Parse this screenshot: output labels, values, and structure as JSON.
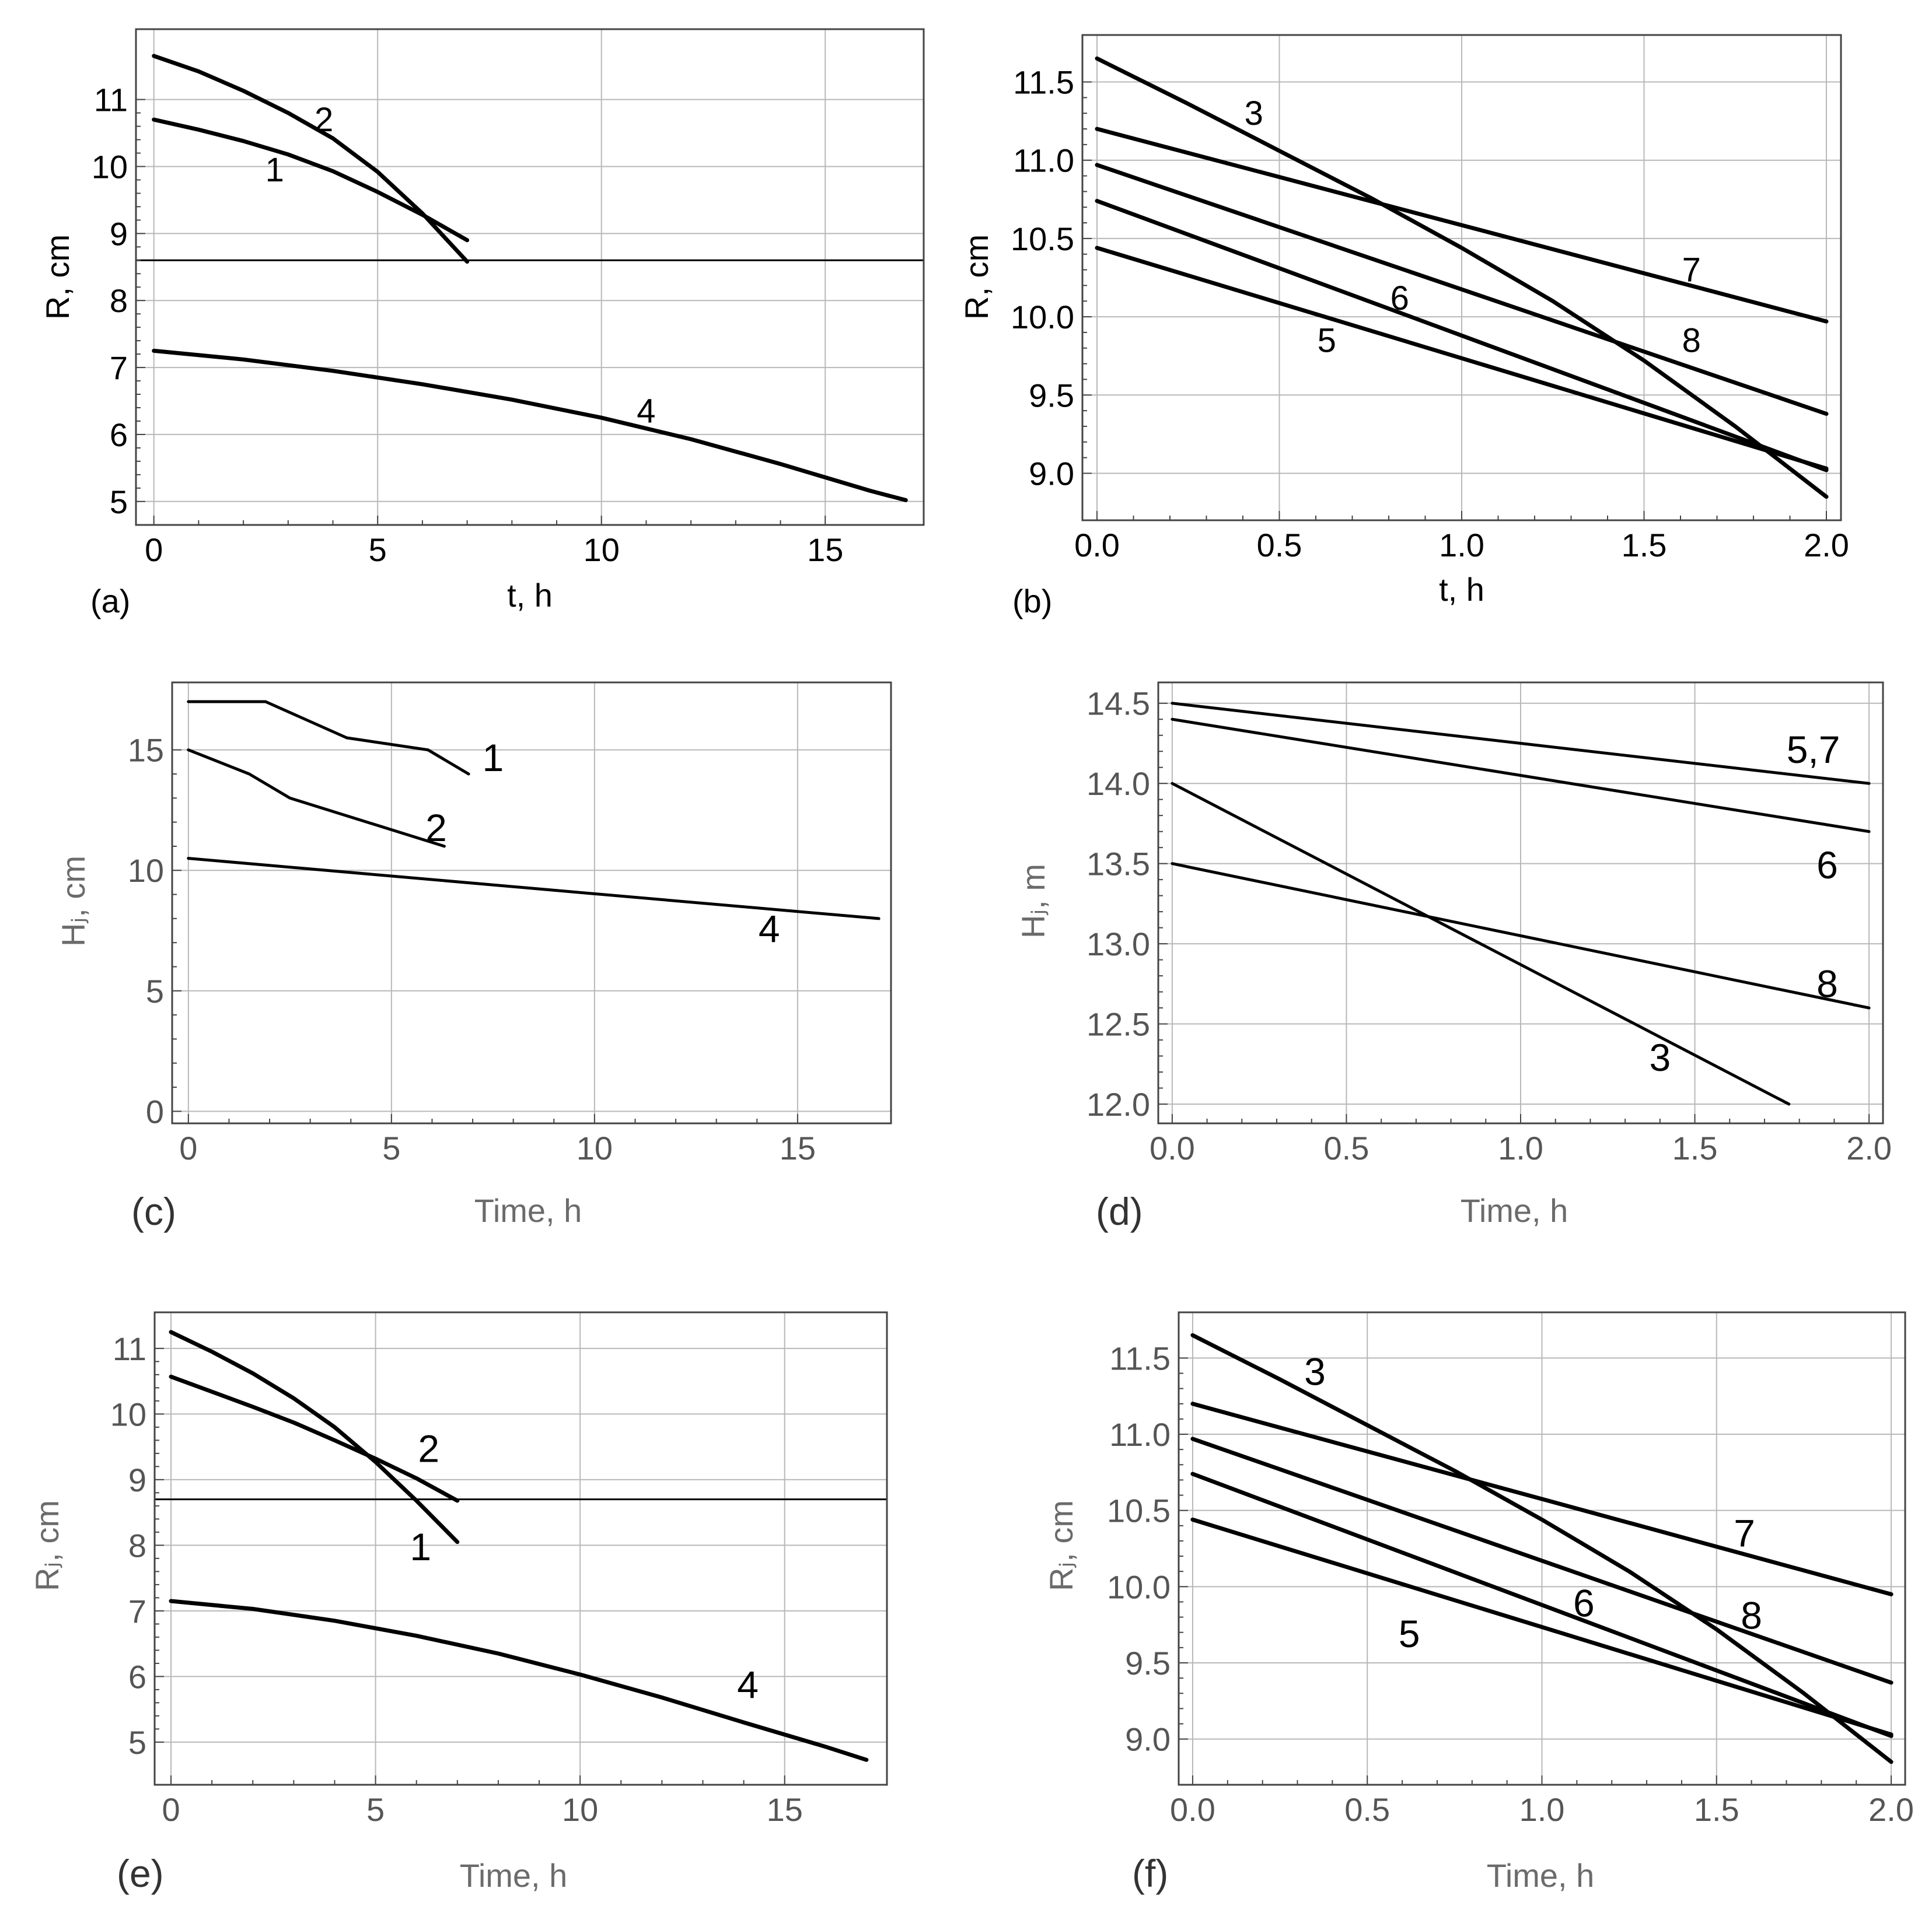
{
  "chart_data": [
    {
      "panel": "(a)",
      "type": "line",
      "xlabel": "t, h",
      "ylabel": "R, cm",
      "xlim": [
        -0.4,
        17.2
      ],
      "ylim": [
        4.65,
        12.05
      ],
      "xticks": [
        0,
        5,
        10,
        15
      ],
      "yticks": [
        5,
        6,
        7,
        8,
        9,
        10,
        11
      ],
      "xtick_labels": [
        "0",
        "5",
        "10",
        "15"
      ],
      "ytick_labels": [
        "5",
        "6",
        "7",
        "8",
        "9",
        "10",
        "11"
      ],
      "grid": true,
      "reference_line_y": 8.6,
      "series": [
        {
          "name": "1",
          "x": [
            0,
            1,
            2,
            3,
            4,
            5,
            6,
            7
          ],
          "y": [
            10.7,
            10.55,
            10.38,
            10.18,
            9.93,
            9.62,
            9.28,
            8.9
          ]
        },
        {
          "name": "2",
          "x": [
            0,
            1,
            2,
            3,
            4,
            5,
            6,
            7
          ],
          "y": [
            11.65,
            11.42,
            11.13,
            10.8,
            10.42,
            9.92,
            9.3,
            8.58
          ]
        },
        {
          "name": "4",
          "x": [
            0,
            2,
            4,
            6,
            8,
            10,
            12,
            14,
            16,
            16.8
          ],
          "y": [
            7.25,
            7.12,
            6.95,
            6.75,
            6.52,
            6.25,
            5.93,
            5.56,
            5.16,
            5.02
          ]
        }
      ],
      "labels": [
        {
          "text": "1",
          "x": 2.7,
          "y": 9.95
        },
        {
          "text": "2",
          "x": 3.8,
          "y": 10.7
        },
        {
          "text": "4",
          "x": 11,
          "y": 6.35
        }
      ]
    },
    {
      "panel": "(b)",
      "type": "line",
      "xlabel": "t, h",
      "ylabel": "R, cm",
      "xlim": [
        -0.04,
        2.04
      ],
      "ylim": [
        8.7,
        11.8
      ],
      "xticks": [
        0.0,
        0.5,
        1.0,
        1.5,
        2.0
      ],
      "yticks": [
        9.0,
        9.5,
        10.0,
        10.5,
        11.0,
        11.5
      ],
      "xtick_labels": [
        "0.0",
        "0.5",
        "1.0",
        "1.5",
        "2.0"
      ],
      "ytick_labels": [
        "9.0",
        "9.5",
        "10.0",
        "10.5",
        "11.0",
        "11.5"
      ],
      "grid": true,
      "series": [
        {
          "name": "3",
          "x": [
            0,
            0.25,
            0.5,
            0.75,
            1,
            1.25,
            1.5,
            1.75,
            2
          ],
          "y": [
            11.65,
            11.36,
            11.06,
            10.76,
            10.44,
            10.1,
            9.72,
            9.3,
            8.85
          ]
        },
        {
          "name": "5",
          "x": [
            0,
            2
          ],
          "y": [
            10.44,
            9.03
          ]
        },
        {
          "name": "6",
          "x": [
            0,
            2
          ],
          "y": [
            10.74,
            9.02
          ]
        },
        {
          "name": "7",
          "x": [
            0,
            2
          ],
          "y": [
            11.2,
            9.97
          ]
        },
        {
          "name": "8",
          "x": [
            0,
            2
          ],
          "y": [
            10.97,
            9.38
          ]
        }
      ],
      "labels": [
        {
          "text": "3",
          "x": 0.43,
          "y": 11.3
        },
        {
          "text": "5",
          "x": 0.63,
          "y": 9.85
        },
        {
          "text": "6",
          "x": 0.83,
          "y": 10.12
        },
        {
          "text": "7",
          "x": 1.63,
          "y": 10.3
        },
        {
          "text": "8",
          "x": 1.63,
          "y": 9.85
        }
      ]
    },
    {
      "panel": "(c)",
      "type": "line",
      "xlabel": "Time, h",
      "ylabel": "Hⱼ, cm",
      "xlim": [
        -0.4,
        17.3
      ],
      "ylim": [
        -0.5,
        17.8
      ],
      "xticks": [
        0,
        5,
        10,
        15
      ],
      "yticks": [
        0,
        5,
        10,
        15
      ],
      "xtick_labels": [
        "0",
        "5",
        "10",
        "15"
      ],
      "ytick_labels": [
        "0",
        "5",
        "10",
        "15"
      ],
      "grid": true,
      "series": [
        {
          "name": "1",
          "x": [
            0,
            1.9,
            3.9,
            5.9,
            6.9
          ],
          "y": [
            17,
            17,
            15.5,
            15,
            14
          ]
        },
        {
          "name": "2",
          "x": [
            0,
            1.5,
            2.5,
            6.3
          ],
          "y": [
            15,
            14,
            13,
            11
          ]
        },
        {
          "name": "4",
          "x": [
            0,
            17
          ],
          "y": [
            10.5,
            8
          ]
        }
      ],
      "labels": [
        {
          "text": "1",
          "x": 7.5,
          "y": 14.6
        },
        {
          "text": "2",
          "x": 6.1,
          "y": 11.7
        },
        {
          "text": "4",
          "x": 14.3,
          "y": 7.5
        }
      ]
    },
    {
      "panel": "(d)",
      "type": "line",
      "xlabel": "Time, h",
      "ylabel": "Hⱼ, m",
      "xlim": [
        -0.04,
        2.04
      ],
      "ylim": [
        11.88,
        14.63
      ],
      "xticks": [
        0.0,
        0.5,
        1.0,
        1.5,
        2.0
      ],
      "yticks": [
        12.0,
        12.5,
        13.0,
        13.5,
        14.0,
        14.5
      ],
      "xtick_labels": [
        "0.0",
        "0.5",
        "1.0",
        "1.5",
        "2.0"
      ],
      "ytick_labels": [
        "12.0",
        "12.5",
        "13.0",
        "13.5",
        "14.0",
        "14.5"
      ],
      "grid": true,
      "series": [
        {
          "name": "5,7",
          "x": [
            0,
            2
          ],
          "y": [
            14.5,
            14.0
          ]
        },
        {
          "name": "6",
          "x": [
            0,
            2
          ],
          "y": [
            14.4,
            13.7
          ]
        },
        {
          "name": "3",
          "x": [
            0,
            1.77
          ],
          "y": [
            14.0,
            12.0
          ]
        },
        {
          "name": "8",
          "x": [
            0,
            2
          ],
          "y": [
            13.5,
            12.6
          ]
        }
      ],
      "labels": [
        {
          "text": "5,7",
          "x": 1.84,
          "y": 14.2
        },
        {
          "text": "6",
          "x": 1.88,
          "y": 13.48
        },
        {
          "text": "8",
          "x": 1.88,
          "y": 12.74
        },
        {
          "text": "3",
          "x": 1.4,
          "y": 12.28
        }
      ]
    },
    {
      "panel": "(e)",
      "type": "line",
      "xlabel": "Time, h",
      "ylabel": "Rⱼ, cm",
      "xlim": [
        -0.4,
        17.5
      ],
      "ylim": [
        4.35,
        11.55
      ],
      "xticks": [
        0,
        5,
        10,
        15
      ],
      "yticks": [
        5,
        6,
        7,
        8,
        9,
        10,
        11
      ],
      "xtick_labels": [
        "0",
        "5",
        "10",
        "15"
      ],
      "ytick_labels": [
        "5",
        "6",
        "7",
        "8",
        "9",
        "10",
        "11"
      ],
      "grid": true,
      "reference_line_y": 8.7,
      "series": [
        {
          "name": "1",
          "x": [
            0,
            1,
            2,
            3,
            4,
            5,
            6,
            7
          ],
          "y": [
            11.25,
            10.95,
            10.62,
            10.24,
            9.8,
            9.27,
            8.68,
            8.05
          ]
        },
        {
          "name": "2",
          "x": [
            0,
            1,
            2,
            3,
            4,
            5,
            6,
            7
          ],
          "y": [
            10.57,
            10.34,
            10.11,
            9.87,
            9.6,
            9.32,
            9.02,
            8.68
          ]
        },
        {
          "name": "4",
          "x": [
            0,
            2,
            4,
            6,
            8,
            10,
            12,
            14,
            16,
            17
          ],
          "y": [
            7.15,
            7.03,
            6.85,
            6.62,
            6.35,
            6.03,
            5.68,
            5.3,
            4.93,
            4.73
          ]
        }
      ],
      "labels": [
        {
          "text": "2",
          "x": 6.3,
          "y": 9.45
        },
        {
          "text": "1",
          "x": 6.1,
          "y": 7.95
        },
        {
          "text": "4",
          "x": 14.1,
          "y": 5.85
        }
      ]
    },
    {
      "panel": "(f)",
      "type": "line",
      "xlabel": "Time, h",
      "ylabel": "Rⱼ, cm",
      "xlim": [
        -0.04,
        2.04
      ],
      "ylim": [
        8.7,
        11.8
      ],
      "xticks": [
        0.0,
        0.5,
        1.0,
        1.5,
        2.0
      ],
      "yticks": [
        9.0,
        9.5,
        10.0,
        10.5,
        11.0,
        11.5
      ],
      "xtick_labels": [
        "0.0",
        "0.5",
        "1.0",
        "1.5",
        "2.0"
      ],
      "ytick_labels": [
        "9.0",
        "9.5",
        "10.0",
        "10.5",
        "11.0",
        "11.5"
      ],
      "grid": true,
      "series": [
        {
          "name": "3",
          "x": [
            0,
            0.25,
            0.5,
            0.75,
            1,
            1.25,
            1.5,
            1.75,
            2
          ],
          "y": [
            11.65,
            11.36,
            11.06,
            10.76,
            10.44,
            10.1,
            9.72,
            9.3,
            8.85
          ]
        },
        {
          "name": "5",
          "x": [
            0,
            2
          ],
          "y": [
            10.44,
            9.03
          ]
        },
        {
          "name": "6",
          "x": [
            0,
            2
          ],
          "y": [
            10.74,
            9.02
          ]
        },
        {
          "name": "7",
          "x": [
            0,
            2
          ],
          "y": [
            11.2,
            9.95
          ]
        },
        {
          "name": "8",
          "x": [
            0,
            2
          ],
          "y": [
            10.97,
            9.37
          ]
        }
      ],
      "labels": [
        {
          "text": "3",
          "x": 0.35,
          "y": 11.4
        },
        {
          "text": "5",
          "x": 0.62,
          "y": 9.68
        },
        {
          "text": "6",
          "x": 1.12,
          "y": 9.88
        },
        {
          "text": "7",
          "x": 1.58,
          "y": 10.34
        },
        {
          "text": "8",
          "x": 1.6,
          "y": 9.8
        }
      ]
    }
  ]
}
